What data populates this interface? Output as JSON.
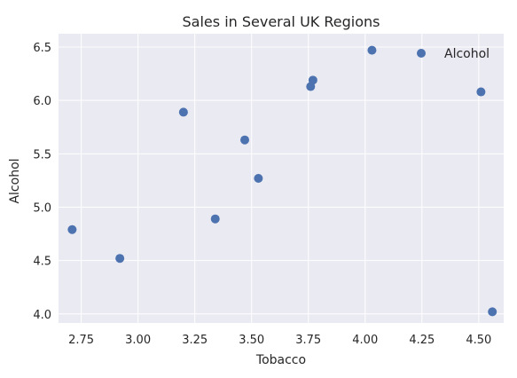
{
  "chart_data": {
    "type": "scatter",
    "title": "Sales in Several UK Regions",
    "xlabel": "Tobacco",
    "ylabel": "Alcohol",
    "xlim": [
      2.65,
      4.61
    ],
    "ylim": [
      3.915,
      6.625
    ],
    "xticks": [
      "2.75",
      "3.00",
      "3.25",
      "3.50",
      "3.75",
      "4.00",
      "4.25",
      "4.50"
    ],
    "yticks": [
      "4.0",
      "4.5",
      "5.0",
      "5.5",
      "6.0",
      "6.5"
    ],
    "grid": true,
    "legend_position": "top-right",
    "series": [
      {
        "name": "Alcohol",
        "color": "#4c72b0",
        "x": [
          2.71,
          2.92,
          3.2,
          3.34,
          3.47,
          3.53,
          3.76,
          3.77,
          4.03,
          4.51,
          4.56
        ],
        "y": [
          4.79,
          4.52,
          5.89,
          4.89,
          5.63,
          5.27,
          6.13,
          6.19,
          6.47,
          6.08,
          4.02
        ]
      }
    ],
    "background": "#eaeaf2",
    "gridColor": "#ffffff"
  }
}
